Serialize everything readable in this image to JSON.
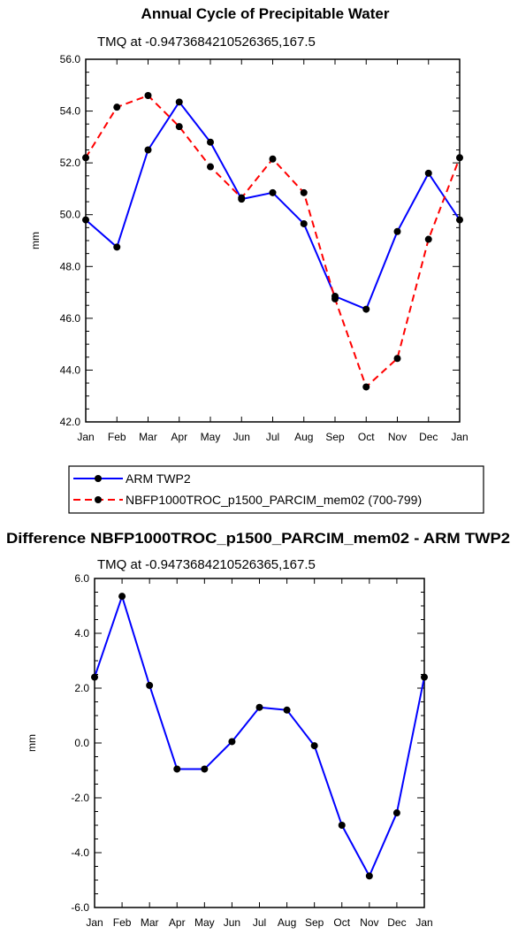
{
  "colors": {
    "arm": "#0000ff",
    "model": "#ff0000",
    "axis": "#000000",
    "marker": "#000000"
  },
  "chart_data": [
    {
      "type": "line",
      "title": "Annual Cycle of Precipitable Water",
      "subtitle": "TMQ at -0.9473684210526365,167.5",
      "xlabel": "",
      "ylabel": "mm",
      "categories": [
        "Jan",
        "Feb",
        "Mar",
        "Apr",
        "May",
        "Jun",
        "Jul",
        "Aug",
        "Sep",
        "Oct",
        "Nov",
        "Dec",
        "Jan"
      ],
      "ylim": [
        42.0,
        56.0
      ],
      "yticks": [
        "42.0",
        "44.0",
        "46.0",
        "48.0",
        "50.0",
        "52.0",
        "54.0",
        "56.0"
      ],
      "grid": false,
      "legend_position": "bottom",
      "series": [
        {
          "name": "ARM TWP2",
          "style": "solid",
          "color": "#0000ff",
          "values": [
            49.8,
            48.75,
            52.5,
            54.35,
            52.8,
            50.6,
            50.85,
            49.65,
            46.85,
            46.35,
            49.35,
            51.6,
            49.8
          ]
        },
        {
          "name": "NBFP1000TROC_p1500_PARCIM_mem02 (700-799)",
          "style": "dashed",
          "color": "#ff0000",
          "values": [
            52.2,
            54.15,
            54.6,
            53.4,
            51.85,
            50.65,
            52.15,
            50.85,
            46.75,
            43.35,
            44.45,
            49.05,
            52.2
          ]
        }
      ]
    },
    {
      "type": "line",
      "title": "Difference NBFP1000TROC_p1500_PARCIM_mem02 - ARM TWP2",
      "subtitle": "TMQ at -0.9473684210526365,167.5",
      "xlabel": "",
      "ylabel": "mm",
      "categories": [
        "Jan",
        "Feb",
        "Mar",
        "Apr",
        "May",
        "Jun",
        "Jul",
        "Aug",
        "Sep",
        "Oct",
        "Nov",
        "Dec",
        "Jan"
      ],
      "ylim": [
        -6.0,
        6.0
      ],
      "yticks": [
        "-6.0",
        "-4.0",
        "-2.0",
        "0.0",
        "2.0",
        "4.0",
        "6.0"
      ],
      "grid": false,
      "series": [
        {
          "style": "solid",
          "color": "#0000ff",
          "values": [
            2.4,
            5.35,
            2.1,
            -0.95,
            -0.95,
            0.05,
            1.3,
            1.2,
            -0.1,
            -3.0,
            -4.85,
            -2.55,
            2.4
          ]
        }
      ]
    }
  ]
}
